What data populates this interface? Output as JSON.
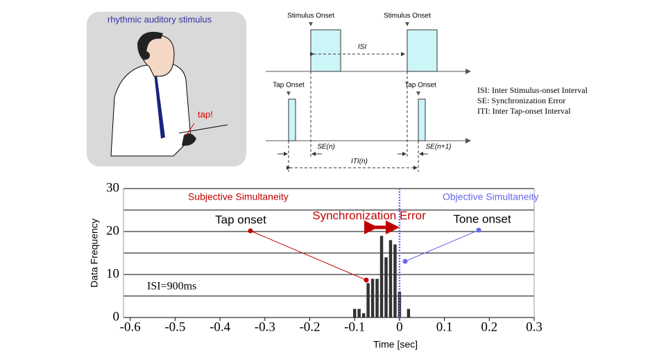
{
  "illustration": {
    "caption": "rhythmic auditory stimulus",
    "tap_label": "tap!"
  },
  "diagram": {
    "stimulus_labels": [
      "Stimulus Onset",
      "Stimulus Onset"
    ],
    "tap_labels": [
      "Tap Onset",
      "Tap Onset"
    ],
    "isi": "ISI",
    "se_labels": [
      "SE(n)",
      "SE(n+1)"
    ],
    "iti": "ITI(n)",
    "legend": [
      "ISI: Inter Stimulus-onset Interval",
      "SE:  Synchronization Error",
      "ITI: Inter Tap-onset Interval"
    ]
  },
  "chart_data": {
    "type": "histogram",
    "x_label": "Time [sec]",
    "y_label": "Data Frequency",
    "bins": [
      -0.105,
      -0.095,
      -0.085,
      -0.075,
      -0.065,
      -0.055,
      -0.045,
      -0.035,
      -0.025,
      -0.015,
      -0.005,
      0.005,
      0.015,
      0.025
    ],
    "values": [
      2,
      2,
      1,
      8,
      9,
      9,
      19,
      14,
      18,
      17,
      6,
      0,
      2
    ],
    "color": "#333333",
    "xlim": [
      -0.615,
      0.3
    ],
    "xticks": [
      -0.6,
      -0.5,
      -0.4,
      -0.3,
      -0.2,
      -0.1,
      0,
      0.1,
      0.2,
      0.3
    ],
    "ylim": [
      0,
      30
    ],
    "yticks": [
      0,
      10,
      20,
      30
    ],
    "minor_yticks": [
      5,
      15,
      25
    ],
    "grid": true,
    "annotations": {
      "subjective": "Subjective Simultaneity",
      "objective": "Objective Simultaneity",
      "sync_error": "Synchronization Error",
      "tap_onset": "Tap onset",
      "tone_onset": "Tone onset",
      "isi": "ISI=900ms"
    }
  }
}
